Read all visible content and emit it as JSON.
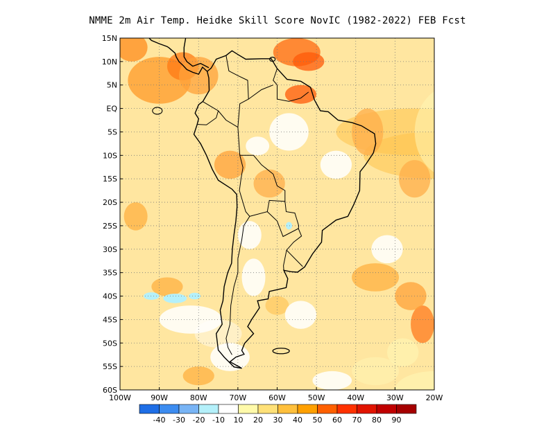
{
  "title": "NMME  2m Air Temp. Heidke Skill Score NovIC (1982-2022) FEB Fcst",
  "map": {
    "lon_range": [
      -100,
      -20
    ],
    "lat_range": [
      -60,
      15
    ],
    "lat_ticks": [
      "15N",
      "10N",
      "5N",
      "EQ",
      "5S",
      "10S",
      "15S",
      "20S",
      "25S",
      "30S",
      "35S",
      "40S",
      "45S",
      "50S",
      "55S",
      "60S"
    ],
    "lon_ticks": [
      "100W",
      "90W",
      "80W",
      "70W",
      "60W",
      "50W",
      "40W",
      "30W",
      "20W"
    ],
    "gridlines": "dotted"
  },
  "colorbar": {
    "labels": [
      "-40",
      "-30",
      "-20",
      "-10",
      "10",
      "20",
      "30",
      "40",
      "50",
      "60",
      "70",
      "80",
      "90"
    ],
    "colors": [
      "#1e6ee6",
      "#3c8cf0",
      "#78b4f5",
      "#b4f0fa",
      "#ffffff",
      "#fffaaa",
      "#ffe178",
      "#ffc03c",
      "#ffa000",
      "#ff6000",
      "#ff3200",
      "#e11400",
      "#c00000",
      "#a50000"
    ]
  }
}
